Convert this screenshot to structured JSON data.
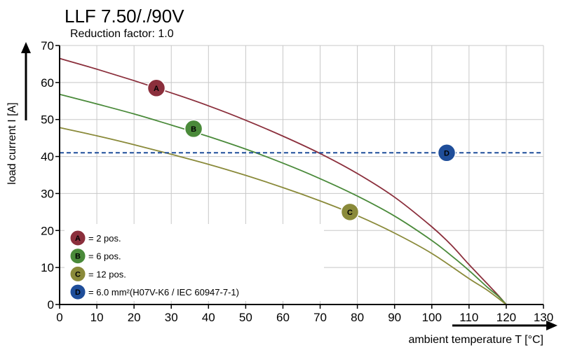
{
  "chart_data": {
    "type": "line",
    "title": "LLF  7.50/./90V",
    "subtitle": "Reduction factor: 1.0",
    "xlabel": "ambient temperature T [°C]",
    "ylabel": "load current I [A]",
    "xlim": [
      0,
      130
    ],
    "ylim": [
      0,
      70
    ],
    "x_ticks": [
      0,
      10,
      20,
      30,
      40,
      50,
      60,
      70,
      80,
      90,
      100,
      110,
      120,
      130
    ],
    "y_ticks": [
      0,
      10,
      20,
      30,
      40,
      50,
      60,
      70
    ],
    "grid": true,
    "series": [
      {
        "name": "A",
        "label": "= 2 pos.",
        "color": "#8b2f3c",
        "x": [
          0,
          10,
          20,
          30,
          40,
          50,
          60,
          70,
          80,
          90,
          100,
          105,
          110,
          115,
          118,
          120
        ],
        "y": [
          66.5,
          63.6,
          60.5,
          57.2,
          53.7,
          49.8,
          45.5,
          40.8,
          35.4,
          29.0,
          21.0,
          16.3,
          10.8,
          5.5,
          2.3,
          0
        ],
        "marker": {
          "text": "A",
          "x": 26,
          "y": 58.5
        }
      },
      {
        "name": "B",
        "label": "= 6 pos.",
        "color": "#4a8a3a",
        "x": [
          0,
          10,
          20,
          30,
          40,
          50,
          60,
          70,
          80,
          90,
          100,
          105,
          110,
          115,
          118,
          120
        ],
        "y": [
          56.8,
          54.2,
          51.5,
          48.5,
          45.4,
          42.0,
          38.2,
          34.0,
          29.3,
          23.9,
          17.3,
          13.4,
          9.2,
          4.6,
          2.1,
          0
        ],
        "marker": {
          "text": "B",
          "x": 36,
          "y": 47.5
        }
      },
      {
        "name": "C",
        "label": "= 12 pos.",
        "color": "#8a8a3a",
        "x": [
          0,
          10,
          20,
          30,
          40,
          50,
          60,
          70,
          80,
          90,
          100,
          110,
          115,
          120
        ],
        "y": [
          47.8,
          45.6,
          43.2,
          40.6,
          37.9,
          34.9,
          31.6,
          28.0,
          24.0,
          19.3,
          13.8,
          7.0,
          3.8,
          0
        ],
        "marker": {
          "text": "C",
          "x": 78,
          "y": 25
        }
      },
      {
        "name": "D",
        "label": "= 6.0 mm²(H07V-K6 / IEC 60947-7-1)",
        "color": "#1f4e9a",
        "style": "dashed",
        "x": [
          0,
          130
        ],
        "y": [
          41,
          41
        ],
        "marker": {
          "text": "D",
          "x": 104,
          "y": 41
        }
      }
    ]
  }
}
